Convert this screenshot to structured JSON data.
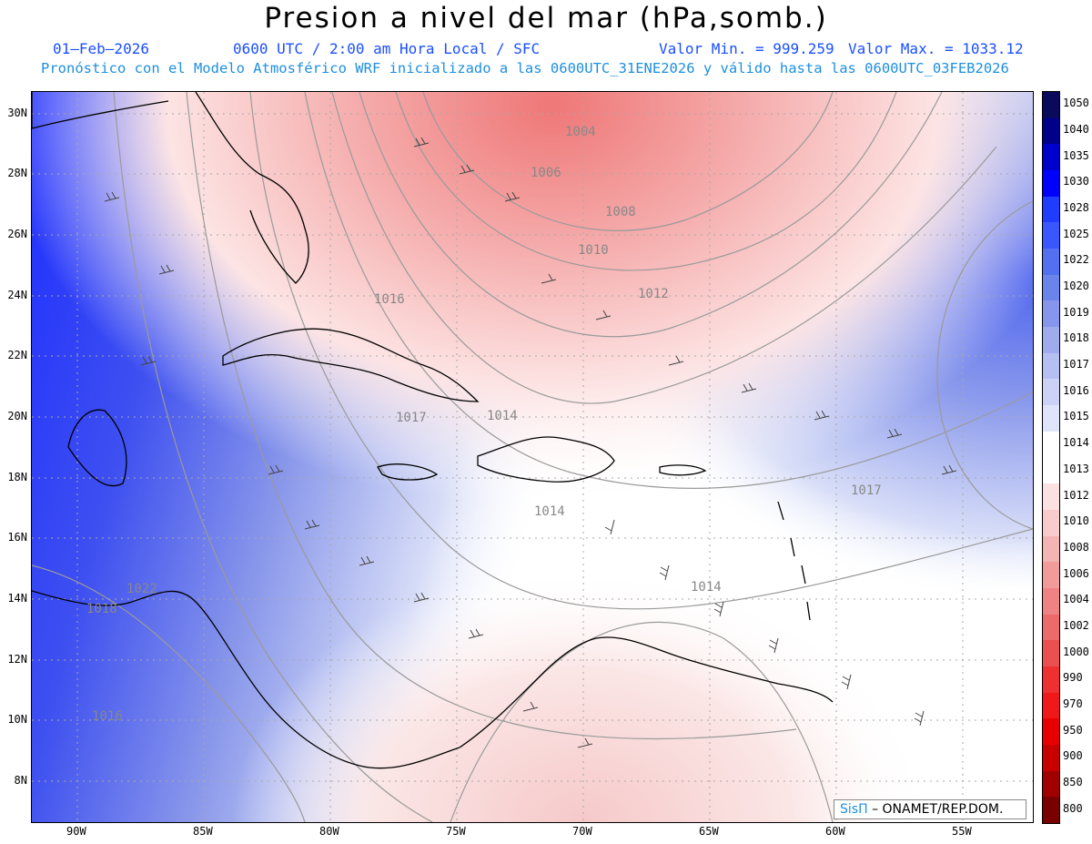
{
  "header": {
    "title": "Presion a nivel del mar (hPa,somb.)",
    "date": "01–Feb–2026",
    "time": "0600 UTC / 2:00 am Hora Local / SFC",
    "valor_min": "Valor Min. = 999.259",
    "valor_max": "Valor Max. = 1033.12",
    "forecast_info": "Pronóstico con el Modelo Atmosférico WRF inicializado a las 0600UTC_31ENE2026 y válido hasta las  0600UTC_03FEB2026"
  },
  "map": {
    "lon_labels": [
      "90W",
      "85W",
      "80W",
      "75W",
      "70W",
      "65W",
      "60W",
      "55W"
    ],
    "lat_labels": [
      "30N",
      "28N",
      "26N",
      "24N",
      "22N",
      "20N",
      "18N",
      "16N",
      "14N",
      "12N",
      "10N",
      "8N"
    ],
    "contour_labels": [
      "1004",
      "1006",
      "1008",
      "1010",
      "1012",
      "1016",
      "1017",
      "1014",
      "1014",
      "1014",
      "1017",
      "1022",
      "1018",
      "1016"
    ]
  },
  "colorbar": {
    "levels": [
      "1050",
      "1040",
      "1035",
      "1030",
      "1028",
      "1025",
      "1022",
      "1020",
      "1019",
      "1018",
      "1017",
      "1016",
      "1015",
      "1014",
      "1013",
      "1012",
      "1010",
      "1008",
      "1006",
      "1004",
      "1002",
      "1000",
      "990",
      "970",
      "950",
      "900",
      "850",
      "800"
    ],
    "colors": [
      "#0a0a5c",
      "#00008b",
      "#0000cd",
      "#0000ff",
      "#1f3dff",
      "#3a57ff",
      "#5270f0",
      "#6b84ec",
      "#8696ec",
      "#9fabee",
      "#b6bff2",
      "#cbd2f6",
      "#e0e4fa",
      "#ffffff",
      "#ffffff",
      "#fbe1e1",
      "#f8cccc",
      "#f5b4b4",
      "#f29b9b",
      "#ef8383",
      "#ec6a6a",
      "#ea5050",
      "#ee3030",
      "#f01818",
      "#e80000",
      "#c80000",
      "#a00000",
      "#7a0000"
    ]
  },
  "credit": {
    "brand": "SisΠ",
    "text": "– ONAMET/REP.DOM."
  }
}
